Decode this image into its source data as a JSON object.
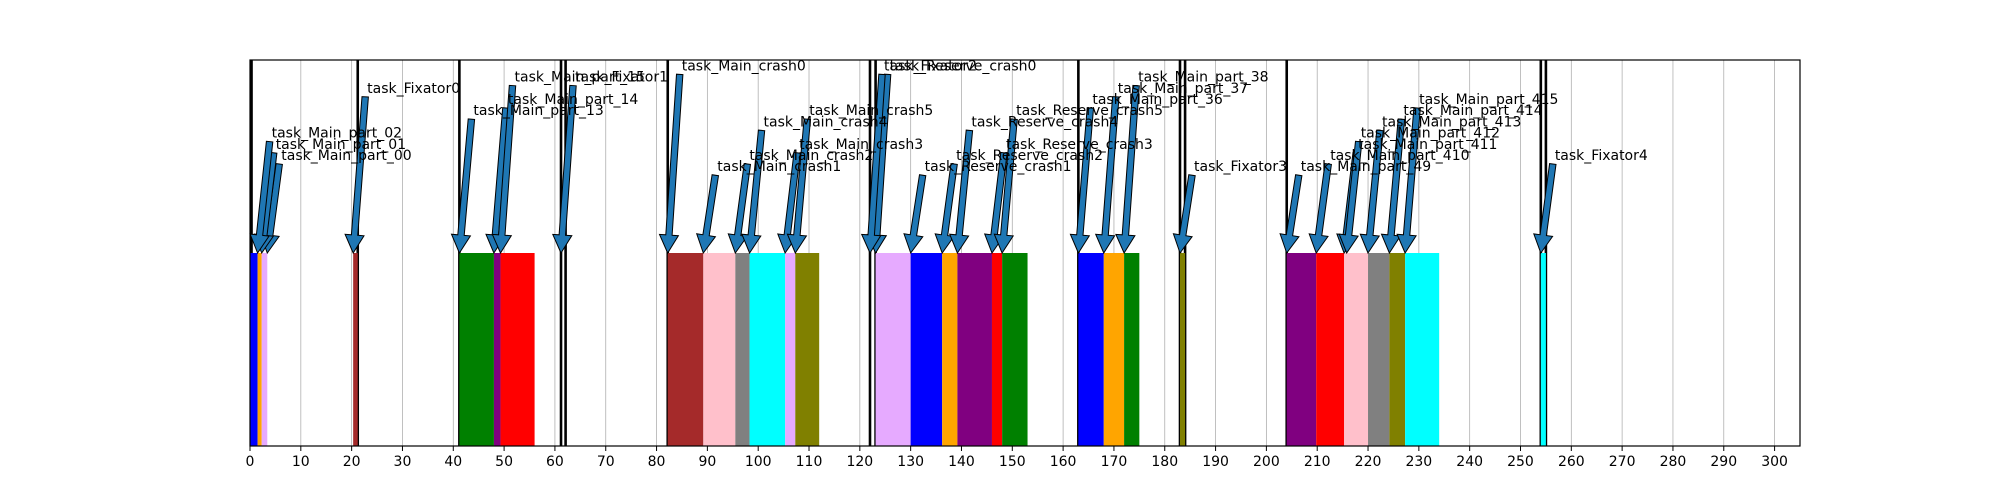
{
  "chart_data": {
    "type": "bar",
    "title": "",
    "xlabel": "",
    "ylabel": "",
    "xlim": [
      0,
      305
    ],
    "x_ticks": [
      0,
      10,
      20,
      30,
      40,
      50,
      60,
      70,
      80,
      90,
      100,
      110,
      120,
      130,
      140,
      150,
      160,
      170,
      180,
      190,
      200,
      210,
      220,
      230,
      240,
      250,
      260,
      270,
      280,
      290,
      300
    ],
    "grid": "vertical",
    "legend": "none",
    "boundaries": [
      0.3,
      21.2,
      41.2,
      61.2,
      62.1,
      82.2,
      122.0,
      123.1,
      163.0,
      183.0,
      184.0,
      204.0,
      254.0,
      255.0
    ],
    "bars": [
      {
        "start": 0.0,
        "end": 1.5,
        "color": "#0000ff"
      },
      {
        "start": 1.5,
        "end": 2.3,
        "color": "#ffa500"
      },
      {
        "start": 2.3,
        "end": 3.4,
        "color": "#e6aaff"
      },
      {
        "start": 20.3,
        "end": 21.2,
        "color": "#a52a2a"
      },
      {
        "start": 41.2,
        "end": 48.0,
        "color": "#008000"
      },
      {
        "start": 48.0,
        "end": 49.3,
        "color": "#800080"
      },
      {
        "start": 49.3,
        "end": 56.0,
        "color": "#ff0000"
      },
      {
        "start": 82.2,
        "end": 89.2,
        "color": "#a52a2a"
      },
      {
        "start": 89.2,
        "end": 95.5,
        "color": "#ffc0cb"
      },
      {
        "start": 95.5,
        "end": 98.3,
        "color": "#808080"
      },
      {
        "start": 98.3,
        "end": 105.3,
        "color": "#00ffff"
      },
      {
        "start": 105.3,
        "end": 107.3,
        "color": "#e6aaff"
      },
      {
        "start": 107.3,
        "end": 112.0,
        "color": "#808000"
      },
      {
        "start": 123.1,
        "end": 130.0,
        "color": "#e6aaff"
      },
      {
        "start": 130.0,
        "end": 136.2,
        "color": "#0000ff"
      },
      {
        "start": 136.2,
        "end": 139.2,
        "color": "#ffa500"
      },
      {
        "start": 139.2,
        "end": 146.0,
        "color": "#800080"
      },
      {
        "start": 146.0,
        "end": 148.0,
        "color": "#ff0000"
      },
      {
        "start": 148.0,
        "end": 153.0,
        "color": "#008000"
      },
      {
        "start": 163.0,
        "end": 168.0,
        "color": "#0000ff"
      },
      {
        "start": 168.0,
        "end": 172.0,
        "color": "#ffa500"
      },
      {
        "start": 172.0,
        "end": 175.0,
        "color": "#008000"
      },
      {
        "start": 183.0,
        "end": 184.0,
        "color": "#808000"
      },
      {
        "start": 204.0,
        "end": 209.8,
        "color": "#800080"
      },
      {
        "start": 209.8,
        "end": 215.3,
        "color": "#ff0000"
      },
      {
        "start": 215.3,
        "end": 220.0,
        "color": "#ffc0cb"
      },
      {
        "start": 220.0,
        "end": 224.2,
        "color": "#808080"
      },
      {
        "start": 224.2,
        "end": 227.3,
        "color": "#808000"
      },
      {
        "start": 227.3,
        "end": 234.0,
        "color": "#00ffff"
      },
      {
        "start": 254.0,
        "end": 255.0,
        "color": "#00ffff"
      }
    ],
    "annotations": [
      {
        "text": "task_Main_part_00",
        "x": 3.4,
        "level": 0
      },
      {
        "text": "task_Main_part_01",
        "x": 2.3,
        "level": 1
      },
      {
        "text": "task_Main_part_02",
        "x": 1.5,
        "level": 2
      },
      {
        "text": "task_Fixator0",
        "x": 20.3,
        "level": 6
      },
      {
        "text": "task_Main_part_13",
        "x": 41.2,
        "level": 4
      },
      {
        "text": "task_Main_part_14",
        "x": 48.0,
        "level": 5
      },
      {
        "text": "task_Main_part_15",
        "x": 49.3,
        "level": 7
      },
      {
        "text": "task_Fixator1",
        "x": 61.2,
        "level": 7
      },
      {
        "text": "task_Main_crash0",
        "x": 82.2,
        "level": 8
      },
      {
        "text": "task_Main_crash1",
        "x": 89.2,
        "level": -1
      },
      {
        "text": "task_Main_crash2",
        "x": 95.5,
        "level": 0
      },
      {
        "text": "task_Main_crash3",
        "x": 105.3,
        "level": 1
      },
      {
        "text": "task_Main_crash4",
        "x": 98.3,
        "level": 3
      },
      {
        "text": "task_Main_crash5",
        "x": 107.3,
        "level": 4
      },
      {
        "text": "task_Reserve_crash0",
        "x": 123.1,
        "level": 8
      },
      {
        "text": "task_Fixator2",
        "x": 122.0,
        "level": 8
      },
      {
        "text": "task_Reserve_crash1",
        "x": 130.0,
        "level": -1
      },
      {
        "text": "task_Reserve_crash2",
        "x": 136.2,
        "level": 0
      },
      {
        "text": "task_Reserve_crash3",
        "x": 146.0,
        "level": 1
      },
      {
        "text": "task_Reserve_crash4",
        "x": 139.2,
        "level": 3
      },
      {
        "text": "task_Reserve_crash5",
        "x": 148.0,
        "level": 4
      },
      {
        "text": "task_Main_part_36",
        "x": 163.0,
        "level": 5
      },
      {
        "text": "task_Main_part_37",
        "x": 168.0,
        "level": 6
      },
      {
        "text": "task_Main_part_38",
        "x": 172.0,
        "level": 7
      },
      {
        "text": "task_Fixator3",
        "x": 183.0,
        "level": -1
      },
      {
        "text": "task_Main_part_49",
        "x": 204.0,
        "level": -1
      },
      {
        "text": "task_Main_part_410",
        "x": 209.8,
        "level": 0
      },
      {
        "text": "task_Main_part_411",
        "x": 215.3,
        "level": 1
      },
      {
        "text": "task_Main_part_412",
        "x": 215.8,
        "level": 2
      },
      {
        "text": "task_Main_part_413",
        "x": 220.0,
        "level": 3
      },
      {
        "text": "task_Main_part_414",
        "x": 224.2,
        "level": 4
      },
      {
        "text": "task_Main_part_415",
        "x": 227.3,
        "level": 5
      },
      {
        "text": "task_Fixator4",
        "x": 254.0,
        "level": 0
      }
    ]
  }
}
